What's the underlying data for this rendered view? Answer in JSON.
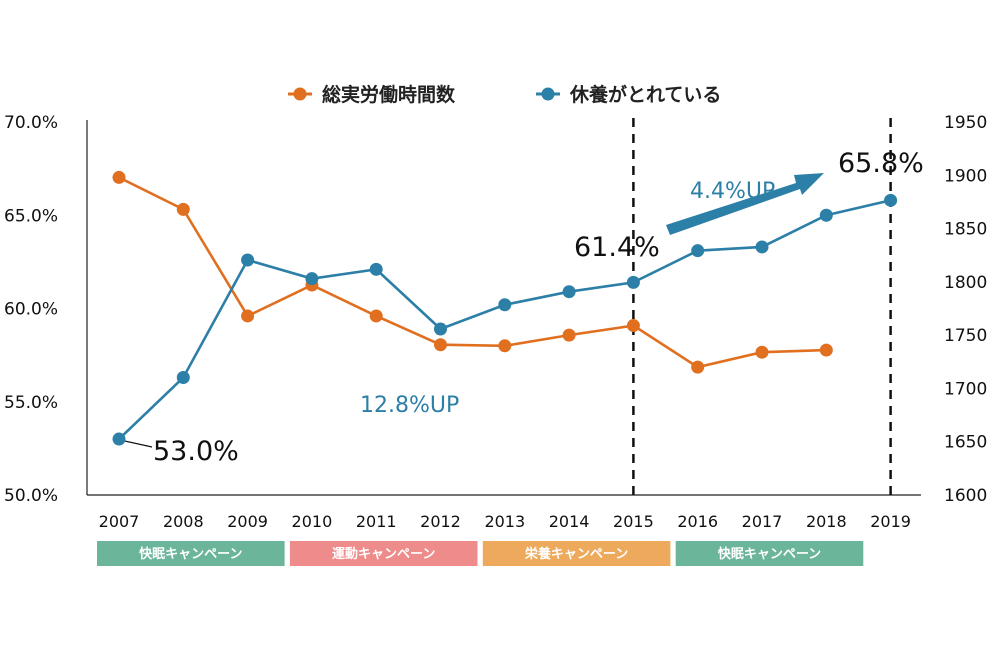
{
  "chart_data": {
    "type": "line",
    "x": [
      "2007",
      "2008",
      "2009",
      "2010",
      "2011",
      "2012",
      "2013",
      "2014",
      "2015",
      "2016",
      "2017",
      "2018",
      "2019"
    ],
    "left_axis": {
      "ylim": [
        50,
        70
      ],
      "ticks": [
        "50.0%",
        "55.0%",
        "60.0%",
        "65.0%",
        "70.0%"
      ],
      "tick_values": [
        50,
        55,
        60,
        65,
        70
      ]
    },
    "right_axis": {
      "ylim": [
        1600,
        1950
      ],
      "ticks": [
        "1600",
        "1650",
        "1700",
        "1750",
        "1800",
        "1850",
        "1900",
        "1950"
      ],
      "tick_values": [
        1600,
        1650,
        1700,
        1750,
        1800,
        1850,
        1900,
        1950
      ]
    },
    "series": [
      {
        "name": "総実労働時間数",
        "axis": "right",
        "color": "#e07020",
        "values": [
          1898,
          1868,
          1768,
          1797,
          1768,
          1741,
          1740,
          1750,
          1759,
          1720,
          1734,
          1736,
          null
        ]
      },
      {
        "name": "休養がとれている",
        "axis": "left",
        "color": "#2c7fa6",
        "values": [
          53.0,
          56.3,
          62.6,
          61.6,
          62.1,
          58.9,
          60.2,
          60.9,
          61.4,
          63.1,
          63.3,
          65.0,
          65.8
        ]
      }
    ],
    "legend_position": "top-center",
    "grid": false,
    "reference_lines_x": [
      "2015",
      "2019"
    ],
    "annotations": {
      "start_value": "53.0%",
      "mid_value": "61.4%",
      "end_value": "65.8%",
      "growth_total": "12.8%UP",
      "growth_recent": "4.4%UP"
    },
    "campaigns": [
      {
        "label": "快眠キャンペーン",
        "start": "2007",
        "end": "2009",
        "color": "#6bb59b"
      },
      {
        "label": "運動キャンペーン",
        "start": "2010",
        "end": "2012",
        "color": "#ee8b8b"
      },
      {
        "label": "栄養キャンペーン",
        "start": "2013",
        "end": "2015",
        "color": "#eeaa5c"
      },
      {
        "label": "快眠キャンペーン",
        "start": "2016",
        "end": "2018",
        "color": "#6bb59b"
      }
    ]
  }
}
